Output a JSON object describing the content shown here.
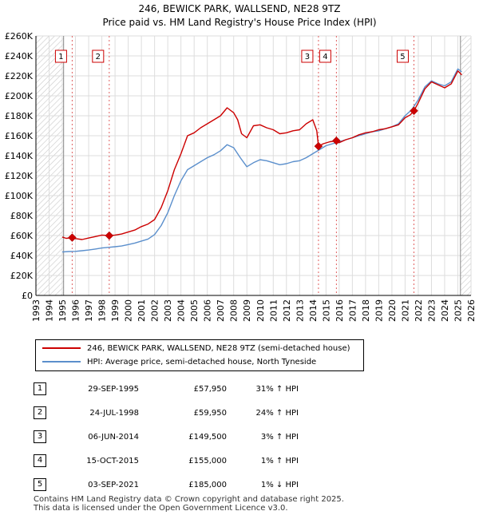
{
  "title_line1": "246, BEWICK PARK, WALLSEND, NE28 9TZ",
  "title_line2": "Price paid vs. HM Land Registry's House Price Index (HPI)",
  "chart_data": {
    "type": "line",
    "xlim": [
      1993,
      2026
    ],
    "ylim": [
      0,
      260000
    ],
    "x_ticks": [
      1993,
      1994,
      1995,
      1996,
      1997,
      1998,
      1999,
      2000,
      2001,
      2002,
      2003,
      2004,
      2005,
      2006,
      2007,
      2008,
      2009,
      2010,
      2011,
      2012,
      2013,
      2014,
      2015,
      2016,
      2017,
      2018,
      2019,
      2020,
      2021,
      2022,
      2023,
      2024,
      2025,
      2026
    ],
    "y_ticks": [
      {
        "value": 0,
        "label": "£0"
      },
      {
        "value": 20000,
        "label": "£20K"
      },
      {
        "value": 40000,
        "label": "£40K"
      },
      {
        "value": 60000,
        "label": "£60K"
      },
      {
        "value": 80000,
        "label": "£80K"
      },
      {
        "value": 100000,
        "label": "£100K"
      },
      {
        "value": 120000,
        "label": "£120K"
      },
      {
        "value": 140000,
        "label": "£140K"
      },
      {
        "value": 160000,
        "label": "£160K"
      },
      {
        "value": 180000,
        "label": "£180K"
      },
      {
        "value": 200000,
        "label": "£200K"
      },
      {
        "value": 220000,
        "label": "£220K"
      },
      {
        "value": 240000,
        "label": "£240K"
      },
      {
        "value": 260000,
        "label": "£260K"
      }
    ],
    "hatched_ranges": [
      [
        1993,
        1995.1
      ],
      [
        2025.2,
        2026
      ]
    ],
    "grid": true,
    "series": [
      {
        "name": "246, BEWICK PARK, WALLSEND, NE28 9TZ (semi-detached house)",
        "color": "#cc0000",
        "points": [
          [
            1995.0,
            58500
          ],
          [
            1995.3,
            57200
          ],
          [
            1995.75,
            57950
          ],
          [
            1996.0,
            57000
          ],
          [
            1996.5,
            56000
          ],
          [
            1997.0,
            57500
          ],
          [
            1997.5,
            59000
          ],
          [
            1998.0,
            60500
          ],
          [
            1998.56,
            59950
          ],
          [
            1999.0,
            60500
          ],
          [
            1999.5,
            61500
          ],
          [
            2000.0,
            63500
          ],
          [
            2000.5,
            65500
          ],
          [
            2001.0,
            69000
          ],
          [
            2001.5,
            71500
          ],
          [
            2002.0,
            76000
          ],
          [
            2002.5,
            88000
          ],
          [
            2003.0,
            105000
          ],
          [
            2003.5,
            126000
          ],
          [
            2004.0,
            142000
          ],
          [
            2004.5,
            160000
          ],
          [
            2005.0,
            163000
          ],
          [
            2005.5,
            168000
          ],
          [
            2006.0,
            172000
          ],
          [
            2006.5,
            176000
          ],
          [
            2007.0,
            180000
          ],
          [
            2007.5,
            188000
          ],
          [
            2008.0,
            183000
          ],
          [
            2008.3,
            176000
          ],
          [
            2008.6,
            162000
          ],
          [
            2009.0,
            158000
          ],
          [
            2009.5,
            170000
          ],
          [
            2010.0,
            171000
          ],
          [
            2010.5,
            168000
          ],
          [
            2011.0,
            166000
          ],
          [
            2011.5,
            162000
          ],
          [
            2012.0,
            163000
          ],
          [
            2012.5,
            165000
          ],
          [
            2013.0,
            166000
          ],
          [
            2013.5,
            172000
          ],
          [
            2014.0,
            176000
          ],
          [
            2014.3,
            165000
          ],
          [
            2014.43,
            149500
          ],
          [
            2014.8,
            152000
          ],
          [
            2015.3,
            154000
          ],
          [
            2015.79,
            155000
          ],
          [
            2016.0,
            153000
          ],
          [
            2016.5,
            156000
          ],
          [
            2017.0,
            158000
          ],
          [
            2017.5,
            161000
          ],
          [
            2018.0,
            163000
          ],
          [
            2018.5,
            164000
          ],
          [
            2019.0,
            166000
          ],
          [
            2019.5,
            167000
          ],
          [
            2020.0,
            169000
          ],
          [
            2020.5,
            171000
          ],
          [
            2021.0,
            178000
          ],
          [
            2021.4,
            181000
          ],
          [
            2021.67,
            185000
          ],
          [
            2022.0,
            193000
          ],
          [
            2022.5,
            207000
          ],
          [
            2023.0,
            214000
          ],
          [
            2023.5,
            211000
          ],
          [
            2024.0,
            208000
          ],
          [
            2024.5,
            212000
          ],
          [
            2025.0,
            225000
          ],
          [
            2025.3,
            221000
          ]
        ]
      },
      {
        "name": "HPI: Average price, semi-detached house, North Tyneside",
        "color": "#5b8fcc",
        "points": [
          [
            1995.0,
            43500
          ],
          [
            1995.5,
            44000
          ],
          [
            1996.0,
            44200
          ],
          [
            1996.5,
            44800
          ],
          [
            1997.0,
            45500
          ],
          [
            1997.5,
            46500
          ],
          [
            1998.0,
            47500
          ],
          [
            1998.5,
            48200
          ],
          [
            1999.0,
            48800
          ],
          [
            1999.5,
            49500
          ],
          [
            2000.0,
            51000
          ],
          [
            2000.5,
            52500
          ],
          [
            2001.0,
            54500
          ],
          [
            2001.5,
            56500
          ],
          [
            2002.0,
            61000
          ],
          [
            2002.5,
            70000
          ],
          [
            2003.0,
            83000
          ],
          [
            2003.5,
            100000
          ],
          [
            2004.0,
            115000
          ],
          [
            2004.5,
            126000
          ],
          [
            2005.0,
            130000
          ],
          [
            2005.5,
            134000
          ],
          [
            2006.0,
            138000
          ],
          [
            2006.5,
            141000
          ],
          [
            2007.0,
            145000
          ],
          [
            2007.5,
            151000
          ],
          [
            2008.0,
            148000
          ],
          [
            2008.5,
            138000
          ],
          [
            2009.0,
            129000
          ],
          [
            2009.5,
            133000
          ],
          [
            2010.0,
            136000
          ],
          [
            2010.5,
            135000
          ],
          [
            2011.0,
            133000
          ],
          [
            2011.5,
            131000
          ],
          [
            2012.0,
            132000
          ],
          [
            2012.5,
            134000
          ],
          [
            2013.0,
            135000
          ],
          [
            2013.5,
            138000
          ],
          [
            2014.0,
            142000
          ],
          [
            2014.5,
            146000
          ],
          [
            2015.0,
            150000
          ],
          [
            2015.5,
            152000
          ],
          [
            2016.0,
            154000
          ],
          [
            2016.5,
            156000
          ],
          [
            2017.0,
            158000
          ],
          [
            2017.5,
            160000
          ],
          [
            2018.0,
            162000
          ],
          [
            2018.5,
            164000
          ],
          [
            2019.0,
            165000
          ],
          [
            2019.5,
            167000
          ],
          [
            2020.0,
            169000
          ],
          [
            2020.5,
            172000
          ],
          [
            2021.0,
            180000
          ],
          [
            2021.5,
            186000
          ],
          [
            2022.0,
            196000
          ],
          [
            2022.5,
            209000
          ],
          [
            2023.0,
            215000
          ],
          [
            2023.5,
            212000
          ],
          [
            2024.0,
            210000
          ],
          [
            2024.5,
            214000
          ],
          [
            2025.0,
            227000
          ],
          [
            2025.3,
            224000
          ]
        ]
      }
    ],
    "sales": [
      {
        "label": "1",
        "x": 1995.75,
        "price": 57950,
        "date": "29-SEP-1995",
        "price_text": "£57,950",
        "hpi_text": "31% ↑ HPI"
      },
      {
        "label": "2",
        "x": 1998.56,
        "price": 59950,
        "date": "24-JUL-1998",
        "price_text": "£59,950",
        "hpi_text": "24% ↑ HPI"
      },
      {
        "label": "3",
        "x": 2014.43,
        "price": 149500,
        "date": "06-JUN-2014",
        "price_text": "£149,500",
        "hpi_text": "3% ↑ HPI"
      },
      {
        "label": "4",
        "x": 2015.79,
        "price": 155000,
        "date": "15-OCT-2015",
        "price_text": "£155,000",
        "hpi_text": "1% ↑ HPI"
      },
      {
        "label": "5",
        "x": 2021.67,
        "price": 185000,
        "date": "03-SEP-2021",
        "price_text": "£185,000",
        "hpi_text": "1% ↓ HPI"
      }
    ]
  },
  "legend": {
    "property_label": "246, BEWICK PARK, WALLSEND, NE28 9TZ (semi-detached house)",
    "hpi_label": "HPI: Average price, semi-detached house, North Tyneside",
    "property_color": "#cc0000",
    "hpi_color": "#5b8fcc"
  },
  "footer": {
    "line1": "Contains HM Land Registry data © Crown copyright and database right 2025.",
    "line2": "This data is licensed under the Open Government Licence v3.0."
  }
}
